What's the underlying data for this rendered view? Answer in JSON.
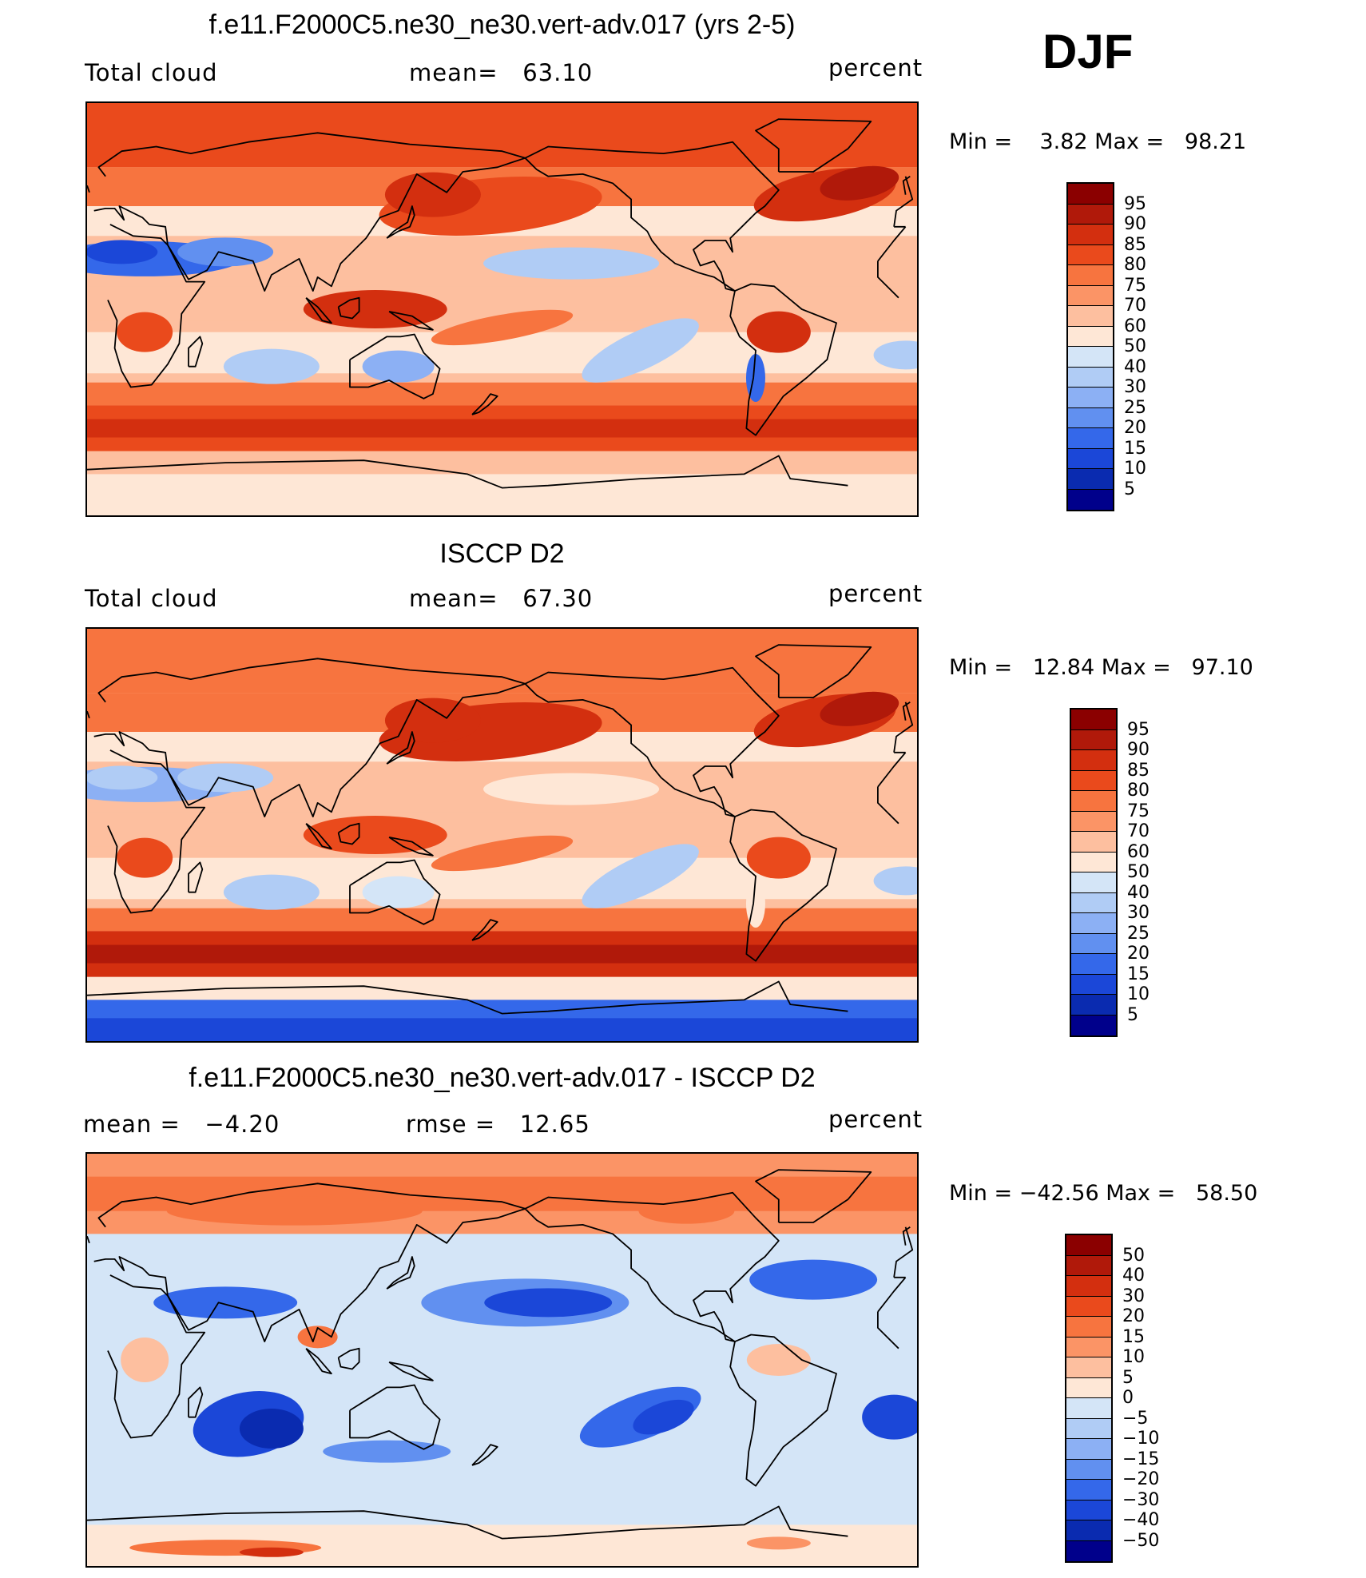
{
  "season": "DJF",
  "panels": [
    {
      "title": "f.e11.F2000C5.ne30_ne30.vert-adv.017 (yrs 2-5)",
      "left_label": "Total cloud",
      "center_label": "mean=   63.10",
      "right_label": "percent",
      "minmax": "Min =    3.82 Max =   98.21",
      "colorbar": {
        "levels": [
          "95",
          "90",
          "85",
          "80",
          "75",
          "70",
          "60",
          "50",
          "40",
          "30",
          "25",
          "20",
          "15",
          "10",
          "5"
        ],
        "colors": [
          "#8b0000",
          "#b0190a",
          "#d32f0f",
          "#ea4a1c",
          "#f7743f",
          "#fb9466",
          "#fdbf9f",
          "#fee7d6",
          "#d4e5f7",
          "#b0ccf5",
          "#8cb0f4",
          "#6190f0",
          "#3468ea",
          "#1b47d8",
          "#0a2bb0",
          "#00008b"
        ]
      },
      "map_kind": "model"
    },
    {
      "title": "ISCCP D2",
      "left_label": "Total cloud",
      "center_label": "mean=   67.30",
      "right_label": "percent",
      "minmax": "Min =   12.84 Max =   97.10",
      "colorbar": {
        "levels": [
          "95",
          "90",
          "85",
          "80",
          "75",
          "70",
          "60",
          "50",
          "40",
          "30",
          "25",
          "20",
          "15",
          "10",
          "5"
        ],
        "colors": [
          "#8b0000",
          "#b0190a",
          "#d32f0f",
          "#ea4a1c",
          "#f7743f",
          "#fb9466",
          "#fdbf9f",
          "#fee7d6",
          "#d4e5f7",
          "#b0ccf5",
          "#8cb0f4",
          "#6190f0",
          "#3468ea",
          "#1b47d8",
          "#0a2bb0",
          "#00008b"
        ]
      },
      "map_kind": "obs"
    },
    {
      "title": "f.e11.F2000C5.ne30_ne30.vert-adv.017 - ISCCP D2",
      "left_label": "mean =   −4.20",
      "center_label": "rmse =   12.65",
      "right_label": "percent",
      "minmax": "Min = −42.56 Max =   58.50",
      "colorbar": {
        "levels": [
          "50",
          "40",
          "30",
          "20",
          "15",
          "10",
          "5",
          "0",
          "−5",
          "−10",
          "−15",
          "−20",
          "−30",
          "−40",
          "−50"
        ],
        "colors": [
          "#8b0000",
          "#b0190a",
          "#d32f0f",
          "#ea4a1c",
          "#f7743f",
          "#fb9466",
          "#fdbf9f",
          "#fee7d6",
          "#d4e5f7",
          "#b0ccf5",
          "#8cb0f4",
          "#6190f0",
          "#3468ea",
          "#1b47d8",
          "#0a2bb0",
          "#00008b"
        ]
      },
      "map_kind": "diff"
    }
  ],
  "chart_data": {
    "type": "heatmap",
    "description_fields": "Three global lat-lon filled contour maps (DJF total cloud)",
    "maps": [
      {
        "title": "f.e11.F2000C5.ne30_ne30.vert-adv.017 (yrs 2-5)",
        "variable": "Total cloud",
        "units": "percent",
        "mean": 63.1,
        "min": 3.82,
        "max": 98.21,
        "contour_levels": [
          5,
          10,
          15,
          20,
          25,
          30,
          40,
          50,
          60,
          70,
          75,
          80,
          85,
          90,
          95
        ]
      },
      {
        "title": "ISCCP D2",
        "variable": "Total cloud",
        "units": "percent",
        "mean": 67.3,
        "min": 12.84,
        "max": 97.1,
        "contour_levels": [
          5,
          10,
          15,
          20,
          25,
          30,
          40,
          50,
          60,
          70,
          75,
          80,
          85,
          90,
          95
        ]
      },
      {
        "title": "f.e11.F2000C5.ne30_ne30.vert-adv.017 - ISCCP D2",
        "units": "percent",
        "mean": -4.2,
        "rmse": 12.65,
        "min": -42.56,
        "max": 58.5,
        "contour_levels": [
          -50,
          -40,
          -30,
          -20,
          -15,
          -10,
          -5,
          0,
          5,
          10,
          15,
          20,
          30,
          40,
          50
        ]
      }
    ]
  }
}
